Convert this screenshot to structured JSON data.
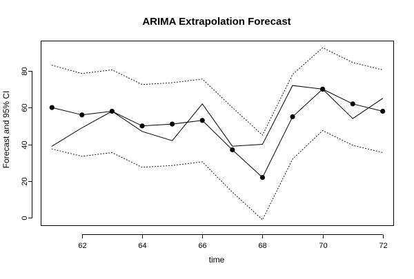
{
  "chart_data": {
    "type": "line",
    "title": "ARIMA Extrapolation Forecast",
    "xlabel": "time",
    "ylabel": "Forecast and 95% CI",
    "xlim": [
      60.65,
      72.35
    ],
    "ylim": [
      -4,
      96
    ],
    "x_ticks": [
      "62",
      "64",
      "66",
      "68",
      "70",
      "72"
    ],
    "y_ticks": [
      "0",
      "20",
      "40",
      "60",
      "80"
    ],
    "grid": false,
    "series": [
      {
        "style": "solid-line",
        "x": [
          61,
          62,
          63,
          64,
          65,
          66,
          67,
          68,
          69,
          70,
          71,
          72
        ],
        "y": [
          39,
          49,
          58,
          47,
          42,
          62,
          39,
          40,
          72,
          70,
          54,
          65
        ]
      },
      {
        "style": "line-with-dots",
        "x": [
          61,
          62,
          63,
          64,
          65,
          66,
          67,
          68,
          69,
          70,
          71,
          72
        ],
        "y": [
          60,
          56,
          58,
          50,
          51,
          53,
          37,
          22,
          55,
          70,
          62,
          58
        ]
      },
      {
        "style": "dotted",
        "x": [
          61,
          62,
          63,
          64,
          65,
          66,
          67,
          68,
          69,
          70,
          71,
          72
        ],
        "y": [
          83,
          78.5,
          80.5,
          72.5,
          73.5,
          75.5,
          60,
          45,
          78,
          92.5,
          84.5,
          80.5
        ]
      },
      {
        "style": "dotted",
        "x": [
          61,
          62,
          63,
          64,
          65,
          66,
          67,
          68,
          69,
          70,
          71,
          72
        ],
        "y": [
          37.5,
          33.5,
          35.5,
          27.5,
          28.5,
          30.5,
          14,
          -1,
          32,
          47.5,
          39.5,
          35.5
        ]
      }
    ]
  }
}
